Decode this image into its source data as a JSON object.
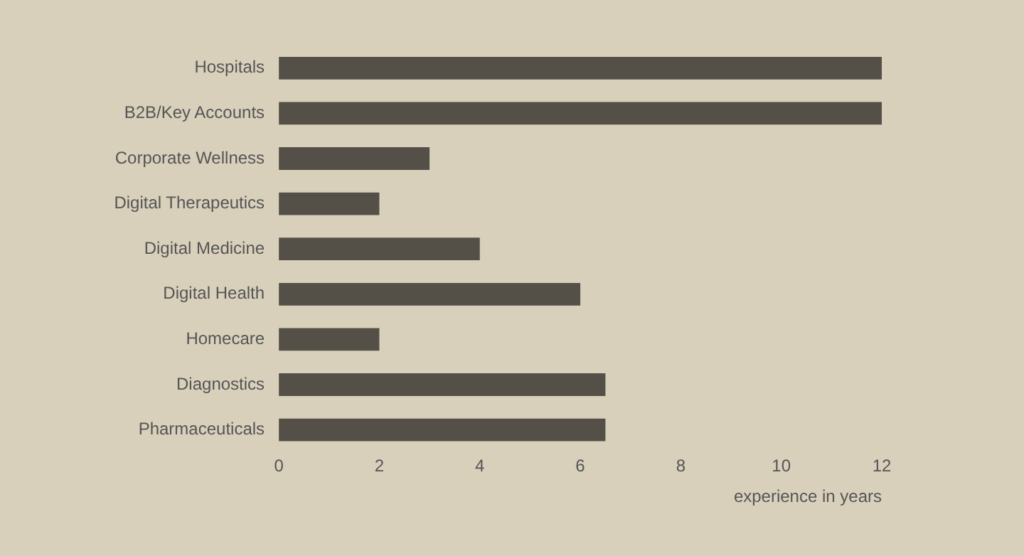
{
  "chart_data": {
    "type": "bar",
    "orientation": "horizontal",
    "xlabel": "experience in years",
    "categories": [
      "Hospitals",
      "B2B/Key Accounts",
      "Corporate Wellness",
      "Digital Therapeutics",
      "Digital Medicine",
      "Digital Health",
      "Homecare",
      "Diagnostics",
      "Pharmaceuticals"
    ],
    "values": [
      12,
      12,
      3,
      2,
      4,
      6,
      2,
      6.5,
      6.5
    ],
    "color": "#545047",
    "xlim": [
      0,
      12
    ],
    "xticks": [
      0,
      2,
      4,
      6,
      8,
      10,
      12
    ],
    "grid": false,
    "legend": false
  }
}
